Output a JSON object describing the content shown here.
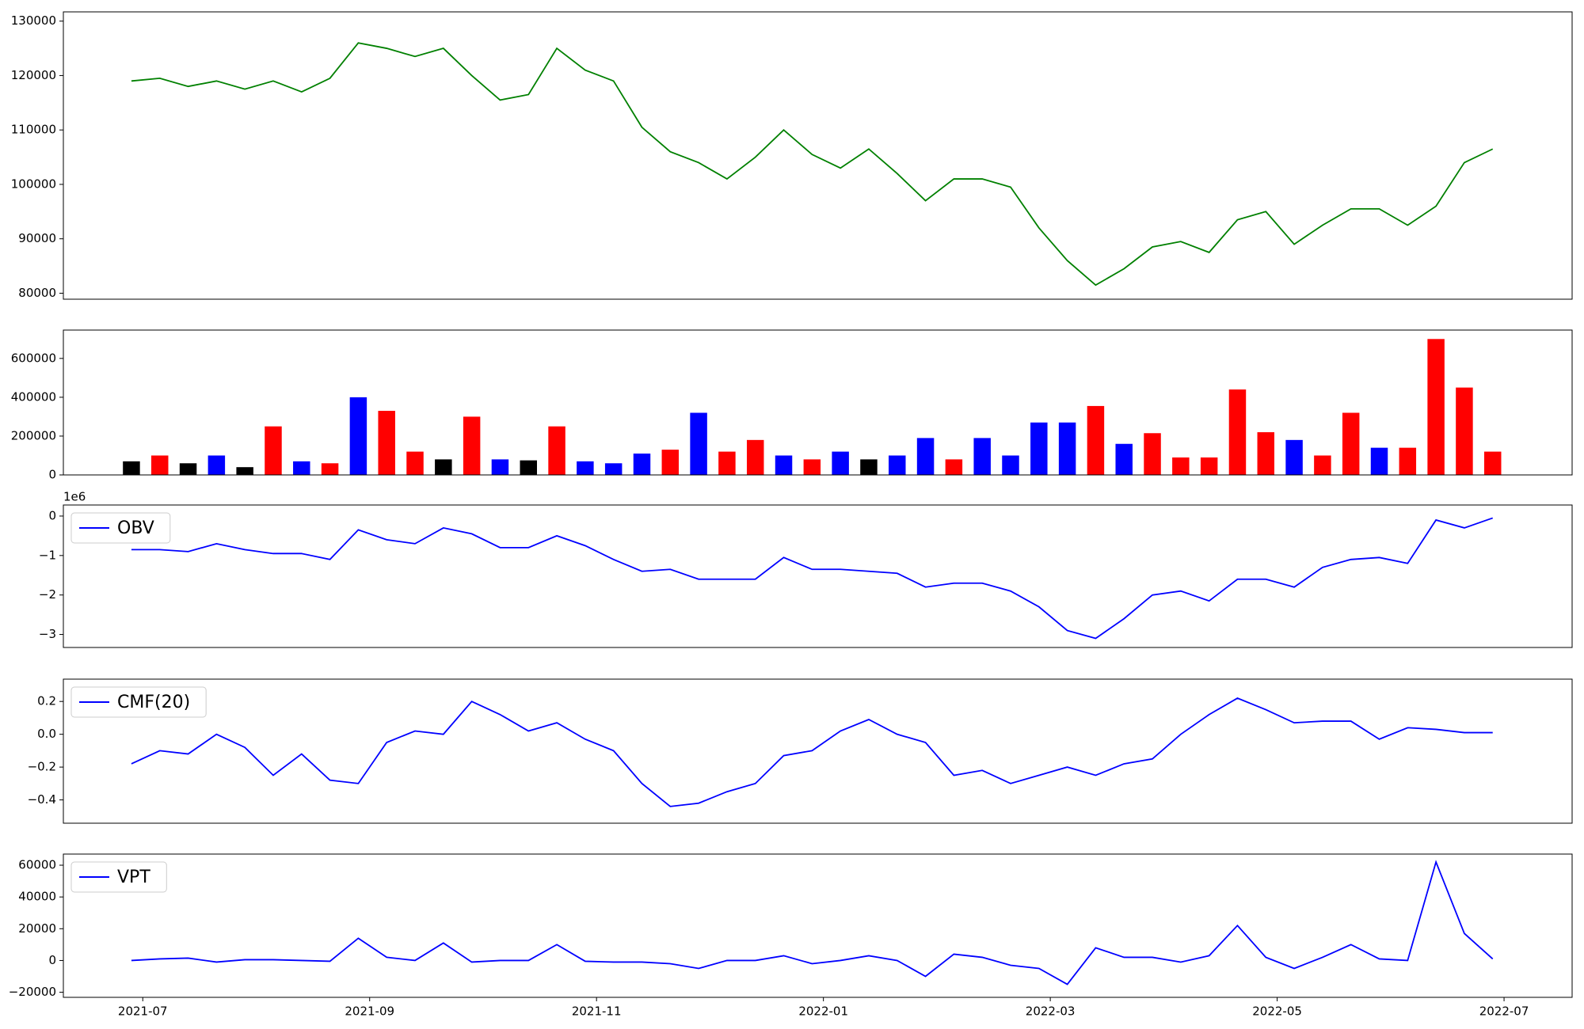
{
  "chart_data": [
    {
      "type": "line",
      "x": [
        -0.1,
        0.15,
        0.4,
        0.65,
        0.9,
        1.15,
        1.4,
        1.65,
        1.9,
        2.15,
        2.4,
        2.65,
        2.9,
        3.15,
        3.4,
        3.65,
        3.9,
        4.15,
        4.4,
        4.65,
        4.9,
        5.15,
        5.4,
        5.65,
        5.9,
        6.15,
        6.4,
        6.65,
        6.9,
        7.15,
        7.4,
        7.65,
        7.9,
        8.15,
        8.4,
        8.65,
        8.9,
        9.15,
        9.4,
        9.65,
        9.9,
        10.15,
        10.4,
        10.65,
        10.9,
        11.15,
        11.4,
        11.65,
        11.9
      ],
      "series": [
        {
          "color": "#008000",
          "values": [
            119000,
            119500,
            118000,
            119000,
            117500,
            119000,
            117000,
            119500,
            126000,
            125000,
            123500,
            125000,
            120000,
            115500,
            116500,
            125000,
            121000,
            119000,
            110500,
            106000,
            104000,
            101000,
            105000,
            110000,
            105500,
            103000,
            106500,
            102000,
            97000,
            101000,
            101000,
            99500,
            92000,
            86000,
            81500,
            84500,
            88500,
            89500,
            87500,
            93500,
            95000,
            89000,
            92500,
            95500,
            95500,
            92500,
            96000,
            104000,
            106500
          ]
        }
      ],
      "xlim": [
        -0.7,
        12.6
      ],
      "ylim": [
        78900,
        131700
      ],
      "yticks": [
        80000,
        90000,
        100000,
        110000,
        120000,
        130000
      ]
    },
    {
      "type": "bar",
      "x": [
        -0.1,
        0.15,
        0.4,
        0.65,
        0.9,
        1.15,
        1.4,
        1.65,
        1.9,
        2.15,
        2.4,
        2.65,
        2.9,
        3.15,
        3.4,
        3.65,
        3.9,
        4.15,
        4.4,
        4.65,
        4.9,
        5.15,
        5.4,
        5.65,
        5.9,
        6.15,
        6.4,
        6.65,
        6.9,
        7.15,
        7.4,
        7.65,
        7.9,
        8.15,
        8.4,
        8.65,
        8.9,
        9.15,
        9.4,
        9.65,
        9.9,
        10.15,
        10.4,
        10.65,
        10.9,
        11.15,
        11.4,
        11.65,
        11.9
      ],
      "values": [
        70000,
        100000,
        60000,
        100000,
        40000,
        250000,
        70000,
        60000,
        400000,
        330000,
        120000,
        80000,
        300000,
        80000,
        75000,
        250000,
        70000,
        60000,
        110000,
        130000,
        320000,
        120000,
        180000,
        100000,
        80000,
        120000,
        80000,
        100000,
        190000,
        80000,
        190000,
        100000,
        270000,
        270000,
        355000,
        160000,
        215000,
        90000,
        90000,
        440000,
        220000,
        180000,
        100000,
        320000,
        140000,
        140000,
        700000,
        450000,
        120000
      ],
      "colors": [
        "#000000",
        "#ff0000",
        "#000000",
        "#0000ff",
        "#000000",
        "#ff0000",
        "#0000ff",
        "#ff0000",
        "#0000ff",
        "#ff0000",
        "#ff0000",
        "#000000",
        "#ff0000",
        "#0000ff",
        "#000000",
        "#ff0000",
        "#0000ff",
        "#0000ff",
        "#0000ff",
        "#ff0000",
        "#0000ff",
        "#ff0000",
        "#ff0000",
        "#0000ff",
        "#ff0000",
        "#0000ff",
        "#000000",
        "#0000ff",
        "#0000ff",
        "#ff0000",
        "#0000ff",
        "#0000ff",
        "#0000ff",
        "#0000ff",
        "#ff0000",
        "#0000ff",
        "#ff0000",
        "#ff0000",
        "#ff0000",
        "#ff0000",
        "#ff0000",
        "#0000ff",
        "#ff0000",
        "#ff0000",
        "#0000ff",
        "#ff0000",
        "#ff0000",
        "#ff0000",
        "#ff0000"
      ],
      "xlim": [
        -0.7,
        12.6
      ],
      "ylim": [
        0,
        746000
      ],
      "yticks": [
        0,
        200000,
        400000,
        600000
      ]
    },
    {
      "type": "line",
      "offset_label": "1e6",
      "legend": "upper left",
      "x": [
        -0.1,
        0.15,
        0.4,
        0.65,
        0.9,
        1.15,
        1.4,
        1.65,
        1.9,
        2.15,
        2.4,
        2.65,
        2.9,
        3.15,
        3.4,
        3.65,
        3.9,
        4.15,
        4.4,
        4.65,
        4.9,
        5.15,
        5.4,
        5.65,
        5.9,
        6.15,
        6.4,
        6.65,
        6.9,
        7.15,
        7.4,
        7.65,
        7.9,
        8.15,
        8.4,
        8.65,
        8.9,
        9.15,
        9.4,
        9.65,
        9.9,
        10.15,
        10.4,
        10.65,
        10.9,
        11.15,
        11.4,
        11.65,
        11.9
      ],
      "series": [
        {
          "name": "OBV",
          "color": "#0000ff",
          "values": [
            -0.85,
            -0.85,
            -0.9,
            -0.7,
            -0.85,
            -0.95,
            -0.95,
            -1.1,
            -0.35,
            -0.6,
            -0.7,
            -0.3,
            -0.45,
            -0.8,
            -0.8,
            -0.5,
            -0.75,
            -1.1,
            -1.4,
            -1.35,
            -1.6,
            -1.6,
            -1.6,
            -1.05,
            -1.35,
            -1.35,
            -1.4,
            -1.45,
            -1.8,
            -1.7,
            -1.7,
            -1.9,
            -2.3,
            -2.9,
            -3.1,
            -2.6,
            -2.0,
            -1.9,
            -2.15,
            -1.6,
            -1.6,
            -1.8,
            -1.3,
            -1.1,
            -1.05,
            -1.2,
            -0.1,
            -0.3,
            -0.05
          ]
        }
      ],
      "xlim": [
        -0.7,
        12.6
      ],
      "ylim": [
        -3.33,
        0.28
      ],
      "yticks": [
        {
          "value": -3,
          "label": "−3"
        },
        {
          "value": -2,
          "label": "−2"
        },
        {
          "value": -1,
          "label": "−1"
        },
        0
      ]
    },
    {
      "type": "line",
      "legend": "upper left",
      "x": [
        -0.1,
        0.15,
        0.4,
        0.65,
        0.9,
        1.15,
        1.4,
        1.65,
        1.9,
        2.15,
        2.4,
        2.65,
        2.9,
        3.15,
        3.4,
        3.65,
        3.9,
        4.15,
        4.4,
        4.65,
        4.9,
        5.15,
        5.4,
        5.65,
        5.9,
        6.15,
        6.4,
        6.65,
        6.9,
        7.15,
        7.4,
        7.65,
        7.9,
        8.15,
        8.4,
        8.65,
        8.9,
        9.15,
        9.4,
        9.65,
        9.9,
        10.15,
        10.4,
        10.65,
        10.9,
        11.15,
        11.4,
        11.65,
        11.9
      ],
      "series": [
        {
          "name": "CMF(20)",
          "color": "#0000ff",
          "values": [
            -0.18,
            -0.1,
            -0.12,
            0.0,
            -0.08,
            -0.25,
            -0.12,
            -0.28,
            -0.3,
            -0.05,
            0.02,
            0.0,
            0.2,
            0.12,
            0.02,
            0.07,
            -0.03,
            -0.1,
            -0.3,
            -0.44,
            -0.42,
            -0.35,
            -0.3,
            -0.13,
            -0.1,
            0.02,
            0.09,
            0.0,
            -0.05,
            -0.25,
            -0.22,
            -0.3,
            -0.25,
            -0.2,
            -0.25,
            -0.18,
            -0.15,
            0.0,
            0.12,
            0.22,
            0.15,
            0.07,
            0.08,
            0.08,
            -0.03,
            0.04,
            0.03,
            0.01,
            0.01
          ]
        }
      ],
      "xlim": [
        -0.7,
        12.6
      ],
      "ylim": [
        -0.542,
        0.336
      ],
      "yticks": [
        {
          "value": -0.4,
          "label": "−0.4"
        },
        {
          "value": -0.2,
          "label": "−0.2"
        },
        {
          "value": 0,
          "label": "0.0"
        },
        0.2
      ]
    },
    {
      "type": "line",
      "legend": "upper left",
      "x": [
        -0.1,
        0.15,
        0.4,
        0.65,
        0.9,
        1.15,
        1.4,
        1.65,
        1.9,
        2.15,
        2.4,
        2.65,
        2.9,
        3.15,
        3.4,
        3.65,
        3.9,
        4.15,
        4.4,
        4.65,
        4.9,
        5.15,
        5.4,
        5.65,
        5.9,
        6.15,
        6.4,
        6.65,
        6.9,
        7.15,
        7.4,
        7.65,
        7.9,
        8.15,
        8.4,
        8.65,
        8.9,
        9.15,
        9.4,
        9.65,
        9.9,
        10.15,
        10.4,
        10.65,
        10.9,
        11.15,
        11.4,
        11.65,
        11.9
      ],
      "series": [
        {
          "name": "VPT",
          "color": "#0000ff",
          "values": [
            0,
            1000,
            1500,
            -1000,
            500,
            500,
            0,
            -500,
            14000,
            2000,
            0,
            11000,
            -1000,
            0,
            0,
            10000,
            -500,
            -1000,
            -1000,
            -2000,
            -5000,
            0,
            0,
            3000,
            -2000,
            0,
            3000,
            0,
            -10000,
            4000,
            2000,
            -3000,
            -5000,
            -15000,
            8000,
            2000,
            2000,
            -1000,
            3000,
            22000,
            2000,
            -5000,
            2000,
            10000,
            1000,
            0,
            62000,
            17000,
            1000
          ]
        }
      ],
      "xlim": [
        -0.7,
        12.6
      ],
      "ylim": [
        -23200,
        67000
      ],
      "yticks": [
        {
          "value": -20000,
          "label": "−20000"
        },
        0,
        20000,
        40000,
        60000
      ],
      "xticks": [
        {
          "value": 0,
          "label": "2021-07"
        },
        {
          "value": 2,
          "label": "2021-09"
        },
        {
          "value": 4,
          "label": "2021-11"
        },
        {
          "value": 6,
          "label": "2022-01"
        },
        {
          "value": 8,
          "label": "2022-03"
        },
        {
          "value": 10,
          "label": "2022-05"
        },
        {
          "value": 12,
          "label": "2022-07"
        }
      ]
    }
  ]
}
